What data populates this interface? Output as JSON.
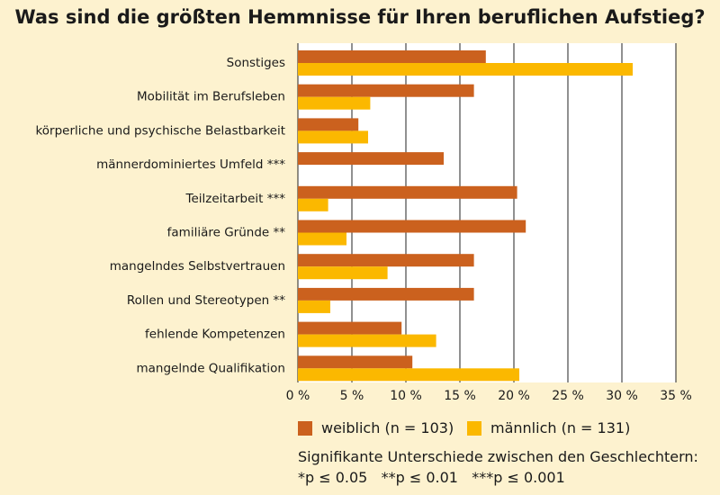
{
  "title": "Was sind die größten Hemmnisse für Ihren beruflichen Aufstieg?",
  "colors": {
    "weiblich": "#cb611e",
    "maennlich": "#fbb800",
    "plot_bg": "#ffffff",
    "grid": "#222222"
  },
  "legend": {
    "weiblich": "weiblich (n = 103)",
    "maennlich": "männlich (n = 131)"
  },
  "note": {
    "line1": "Signifikante Unterschiede zwischen den Geschlechtern:",
    "line2": "*p ≤ 0.05   **p ≤ 0.01   ***p ≤ 0.001"
  },
  "chart_data": {
    "type": "bar",
    "orientation": "horizontal",
    "title": "Was sind die größten Hemmnisse für Ihren beruflichen Aufstieg?",
    "categories": [
      "Sonstiges",
      "Mobilität im Berufsleben",
      "körperliche und psychische Belastbarkeit",
      "männerdominiertes Umfeld ***",
      "Teilzeitarbeit ***",
      "familiäre Gründe **",
      "mangelndes Selbstvertrauen",
      "Rollen und Stereotypen **",
      "fehlende Kompetenzen",
      "mangelnde Qualifikation"
    ],
    "series": [
      {
        "name": "weiblich (n = 103)",
        "values": [
          17.4,
          16.3,
          5.6,
          13.5,
          20.3,
          21.1,
          16.3,
          16.3,
          9.6,
          10.6
        ]
      },
      {
        "name": "männlich (n = 131)",
        "values": [
          31.0,
          6.7,
          6.5,
          0,
          2.8,
          4.5,
          8.3,
          3.0,
          12.8,
          20.5
        ]
      }
    ],
    "xlim": [
      0,
      35
    ],
    "xticks": [
      0,
      5,
      10,
      15,
      20,
      25,
      30,
      35
    ],
    "xtick_labels": [
      "0 %",
      "5 %",
      "10 %",
      "15 %",
      "20 %",
      "25 %",
      "30 %",
      "35 %"
    ],
    "xlabel": "",
    "ylabel": "",
    "grid": true
  }
}
